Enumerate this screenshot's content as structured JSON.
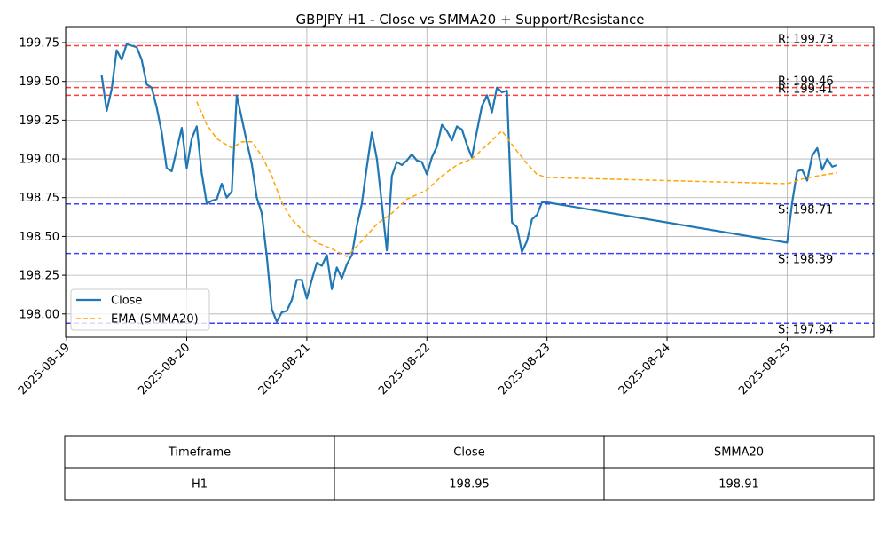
{
  "chart_data": {
    "type": "line",
    "title": "GBPJPY H1 - Close vs SMMA20 + Support/Resistance",
    "xlim": [
      -0.2,
      161.3
    ],
    "xticks": [
      {
        "value": 0,
        "label": "2025-08-19"
      },
      {
        "value": 24,
        "label": "2025-08-20"
      },
      {
        "value": 48,
        "label": "2025-08-21"
      },
      {
        "value": 72,
        "label": "2025-08-22"
      },
      {
        "value": 96,
        "label": "2025-08-23"
      },
      {
        "value": 120,
        "label": "2025-08-24"
      },
      {
        "value": 144,
        "label": "2025-08-25"
      }
    ],
    "ylim": [
      197.85,
      199.853
    ],
    "yticks": [
      {
        "value": 198,
        "label": "198.00"
      },
      198.25,
      {
        "value": 198.5,
        "label": "198.50"
      },
      198.75,
      {
        "value": 199,
        "label": "199.00"
      },
      199.25,
      {
        "value": 199.5,
        "label": "199.50"
      },
      199.75
    ],
    "grid": true,
    "legend": "lower left",
    "series": [
      {
        "name": "Close",
        "color": "#1f77b4",
        "dash": "solid",
        "x": [
          7,
          8,
          9,
          10,
          11,
          12,
          13,
          14,
          15,
          16,
          17,
          18,
          19,
          20,
          21,
          22,
          23,
          24,
          25,
          26,
          27,
          28,
          29,
          30,
          31,
          32,
          33,
          34,
          35,
          36,
          37,
          38,
          39,
          40,
          41,
          42,
          43,
          44,
          45,
          46,
          47,
          48,
          49,
          50,
          51,
          52,
          53,
          54,
          55,
          56,
          57,
          58,
          59,
          60,
          61,
          62,
          63,
          64,
          65,
          66,
          67,
          68,
          69,
          70,
          71,
          72,
          73,
          74,
          75,
          76,
          77,
          78,
          79,
          80,
          81,
          82,
          83,
          84,
          85,
          86,
          87,
          88,
          89,
          90,
          91,
          92,
          93,
          94,
          95,
          96,
          144,
          145,
          146,
          147,
          148,
          149,
          150,
          151,
          152,
          153,
          154
        ],
        "values": [
          199.54,
          199.31,
          199.45,
          199.7,
          199.64,
          199.74,
          199.73,
          199.72,
          199.64,
          199.48,
          199.46,
          199.33,
          199.17,
          198.94,
          198.92,
          199.06,
          199.2,
          198.94,
          199.13,
          199.21,
          198.91,
          198.71,
          198.73,
          198.74,
          198.84,
          198.75,
          198.79,
          199.41,
          199.26,
          199.11,
          198.97,
          198.75,
          198.65,
          198.37,
          198.03,
          197.95,
          198.01,
          198.02,
          198.09,
          198.22,
          198.22,
          198.1,
          198.22,
          198.33,
          198.31,
          198.38,
          198.16,
          198.3,
          198.23,
          198.32,
          198.38,
          198.57,
          198.71,
          198.95,
          199.17,
          199.0,
          198.71,
          198.41,
          198.89,
          198.98,
          198.96,
          198.99,
          199.03,
          198.99,
          198.98,
          198.9,
          199.01,
          199.08,
          199.22,
          199.18,
          199.12,
          199.21,
          199.19,
          199.09,
          199.01,
          199.18,
          199.34,
          199.41,
          199.3,
          199.46,
          199.43,
          199.44,
          198.59,
          198.56,
          198.4,
          198.47,
          198.61,
          198.64,
          198.72,
          198.72,
          198.46,
          198.72,
          198.92,
          198.93,
          198.86,
          199.02,
          199.07,
          198.93,
          199.0,
          198.95,
          198.96
        ]
      },
      {
        "name": "EMA (SMMA20)",
        "color": "orange",
        "dash": "dashed",
        "x": [
          26,
          28,
          30,
          33,
          35,
          37,
          39,
          41,
          43,
          45,
          48,
          50,
          53,
          56,
          59,
          62,
          65,
          68,
          72,
          75,
          78,
          81,
          84,
          87,
          90,
          92,
          94,
          96,
          144,
          147,
          150,
          154
        ],
        "values": [
          199.37,
          199.22,
          199.13,
          199.07,
          199.11,
          199.11,
          199.02,
          198.89,
          198.72,
          198.61,
          198.51,
          198.46,
          198.42,
          198.37,
          198.47,
          198.58,
          198.65,
          198.74,
          198.8,
          198.89,
          198.96,
          199.0,
          199.09,
          199.18,
          199.05,
          198.97,
          198.9,
          198.88,
          198.84,
          198.87,
          198.89,
          198.91
        ]
      }
    ],
    "levels": [
      {
        "label": "R: 199.73",
        "value": 199.73,
        "color": "red"
      },
      {
        "label": "R: 199.46",
        "value": 199.46,
        "color": "red"
      },
      {
        "label": "R: 199.41",
        "value": 199.41,
        "color": "red"
      },
      {
        "label": "S: 198.71",
        "value": 198.71,
        "color": "blue"
      },
      {
        "label": "S: 198.39",
        "value": 198.39,
        "color": "blue"
      },
      {
        "label": "S: 197.94",
        "value": 197.94,
        "color": "blue"
      }
    ]
  },
  "table": {
    "header": [
      "Timeframe",
      "Close",
      "SMMA20"
    ],
    "rows": [
      [
        "H1",
        "198.95",
        "198.91"
      ]
    ]
  }
}
